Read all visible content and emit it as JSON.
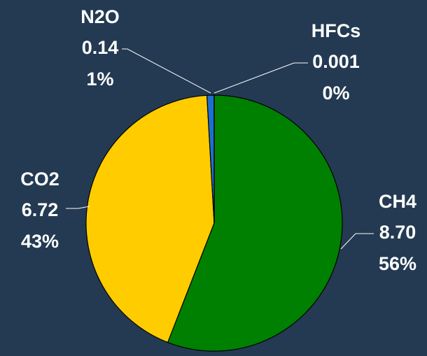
{
  "chart_data": {
    "type": "pie",
    "categories": [
      "CH4",
      "CO2",
      "N2O",
      "HFCs"
    ],
    "values": [
      8.7,
      6.72,
      0.14,
      0.001
    ],
    "value_labels": [
      "8.70",
      "6.72",
      "0.14",
      "0.001"
    ],
    "percent_labels": [
      "56%",
      "43%",
      "1%",
      "0%"
    ],
    "colors": [
      "#008000",
      "#ffcc00",
      "#1f6fd0",
      "#7030a0"
    ]
  }
}
